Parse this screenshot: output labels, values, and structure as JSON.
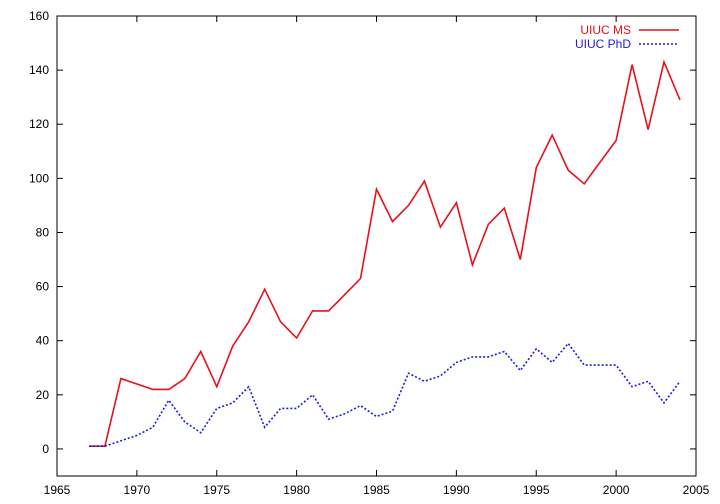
{
  "chart_data": {
    "type": "line",
    "title": "",
    "xlabel": "",
    "ylabel": "",
    "xlim": [
      1965,
      2005
    ],
    "ylim": [
      -10,
      160
    ],
    "xticks": [
      1965,
      1970,
      1975,
      1980,
      1985,
      1990,
      1995,
      2000,
      2005
    ],
    "yticks": [
      0,
      20,
      40,
      60,
      80,
      100,
      120,
      140,
      160
    ],
    "grid": false,
    "legend_position": "top-right",
    "series": [
      {
        "name": "UIUC MS",
        "color": "#e8101a",
        "style": "solid",
        "x": [
          1967,
          1968,
          1969,
          1970,
          1971,
          1972,
          1973,
          1974,
          1975,
          1976,
          1977,
          1978,
          1979,
          1980,
          1981,
          1982,
          1983,
          1984,
          1985,
          1986,
          1987,
          1988,
          1989,
          1990,
          1991,
          1992,
          1993,
          1994,
          1995,
          1996,
          1997,
          1998,
          1999,
          2000,
          2001,
          2002,
          2003,
          2004
        ],
        "y": [
          1,
          1,
          26,
          24,
          22,
          22,
          26,
          36,
          23,
          38,
          47,
          59,
          47,
          41,
          51,
          51,
          57,
          63,
          96,
          84,
          90,
          99,
          82,
          91,
          68,
          83,
          89,
          70,
          104,
          116,
          103,
          98,
          106,
          114,
          142,
          118,
          143,
          129
        ]
      },
      {
        "name": "UIUC PhD",
        "color": "#1a1ae8",
        "style": "dotted",
        "x": [
          1967,
          1968,
          1969,
          1970,
          1971,
          1972,
          1973,
          1974,
          1975,
          1976,
          1977,
          1978,
          1979,
          1980,
          1981,
          1982,
          1983,
          1984,
          1985,
          1986,
          1987,
          1988,
          1989,
          1990,
          1991,
          1992,
          1993,
          1994,
          1995,
          1996,
          1997,
          1998,
          1999,
          2000,
          2001,
          2002,
          2003,
          2004
        ],
        "y": [
          1,
          1,
          3,
          5,
          8,
          18,
          10,
          6,
          15,
          17,
          23,
          8,
          15,
          15,
          20,
          11,
          13,
          16,
          12,
          14,
          28,
          25,
          27,
          32,
          34,
          34,
          36,
          29,
          37,
          32,
          39,
          31,
          31,
          31,
          23,
          25,
          17,
          25
        ]
      }
    ]
  }
}
